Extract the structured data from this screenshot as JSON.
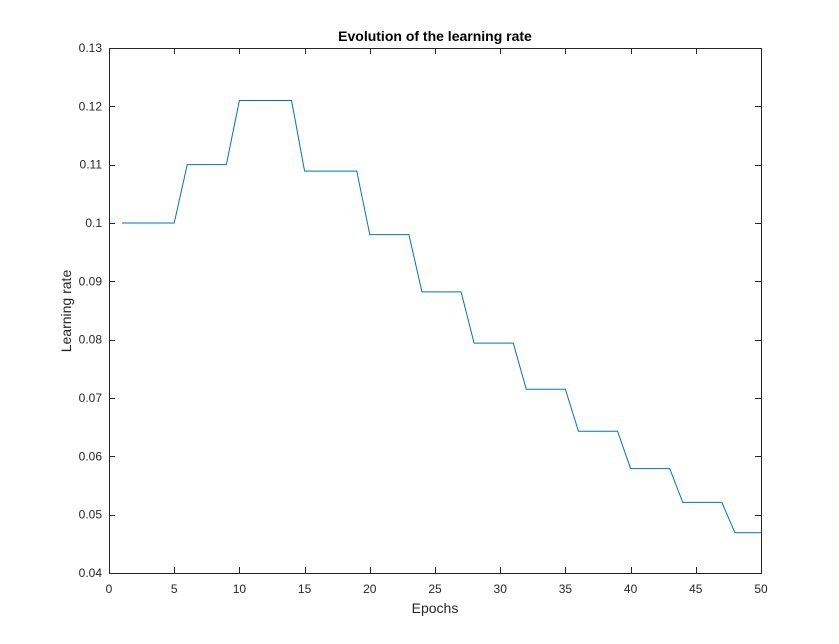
{
  "chart_data": {
    "type": "line",
    "title": "Evolution of the learning rate",
    "xlabel": "Epochs",
    "ylabel": "Learning rate",
    "xlim": [
      0,
      50
    ],
    "ylim": [
      0.04,
      0.13
    ],
    "xticks": [
      0,
      5,
      10,
      15,
      20,
      25,
      30,
      35,
      40,
      45,
      50
    ],
    "yticks": [
      0.04,
      0.05,
      0.06,
      0.07,
      0.08,
      0.09,
      0.1,
      0.11,
      0.12,
      0.13
    ],
    "xtick_labels": [
      "0",
      "5",
      "10",
      "15",
      "20",
      "25",
      "30",
      "35",
      "40",
      "45",
      "50"
    ],
    "ytick_labels": [
      "0.04",
      "0.05",
      "0.06",
      "0.07",
      "0.08",
      "0.09",
      "0.1",
      "0.11",
      "0.12",
      "0.13"
    ],
    "grid": false,
    "colors": {
      "line": "#0072bd",
      "axis": "#262626"
    },
    "series": [
      {
        "x": [
          1,
          2,
          3,
          4,
          5,
          6,
          7,
          8,
          9,
          10,
          11,
          12,
          13,
          14,
          15,
          16,
          17,
          18,
          19,
          20,
          21,
          22,
          23,
          24,
          25,
          26,
          27,
          28,
          29,
          30,
          31,
          32,
          33,
          34,
          35,
          36,
          37,
          38,
          39,
          40,
          41,
          42,
          43,
          44,
          45,
          46,
          47,
          48,
          49,
          50
        ],
        "y": [
          0.1,
          0.1,
          0.1,
          0.1,
          0.1,
          0.11,
          0.11,
          0.11,
          0.11,
          0.121,
          0.121,
          0.121,
          0.121,
          0.121,
          0.1089,
          0.1089,
          0.1089,
          0.1089,
          0.1089,
          0.098,
          0.098,
          0.098,
          0.098,
          0.0882,
          0.0882,
          0.0882,
          0.0882,
          0.0794,
          0.0794,
          0.0794,
          0.0794,
          0.0715,
          0.0715,
          0.0715,
          0.0715,
          0.0643,
          0.0643,
          0.0643,
          0.0643,
          0.0579,
          0.0579,
          0.0579,
          0.0579,
          0.0521,
          0.0521,
          0.0521,
          0.0521,
          0.0469,
          0.0469,
          0.0469
        ]
      }
    ]
  }
}
